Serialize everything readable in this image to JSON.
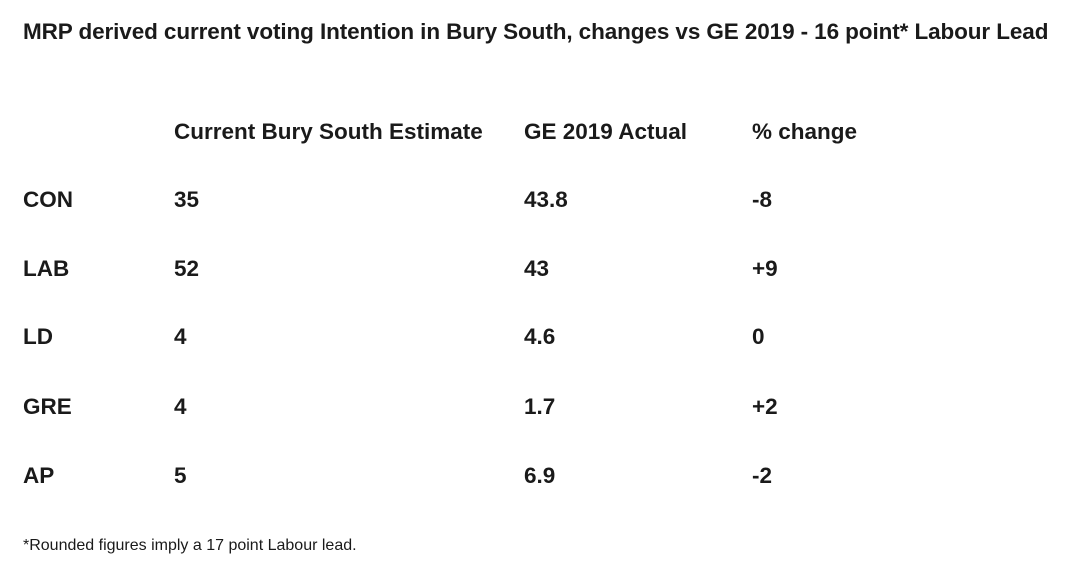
{
  "chart_data": {
    "type": "table",
    "title": "MRP derived current voting Intention in Bury South, changes vs GE 2019 - 16 point* Labour Lead",
    "columns": [
      "",
      "Current Bury South Estimate",
      "GE 2019 Actual",
      "% change"
    ],
    "rows": [
      {
        "party": "CON",
        "estimate": "35",
        "actual": "43.8",
        "change": "-8"
      },
      {
        "party": "LAB",
        "estimate": "52",
        "actual": "43",
        "change": "+9"
      },
      {
        "party": "LD",
        "estimate": "4",
        "actual": "4.6",
        "change": "0"
      },
      {
        "party": "GRE",
        "estimate": "4",
        "actual": "1.7",
        "change": "+2"
      },
      {
        "party": "AP",
        "estimate": "5",
        "actual": "6.9",
        "change": "-2"
      }
    ],
    "footnote": "*Rounded figures imply a 17 point Labour lead."
  }
}
